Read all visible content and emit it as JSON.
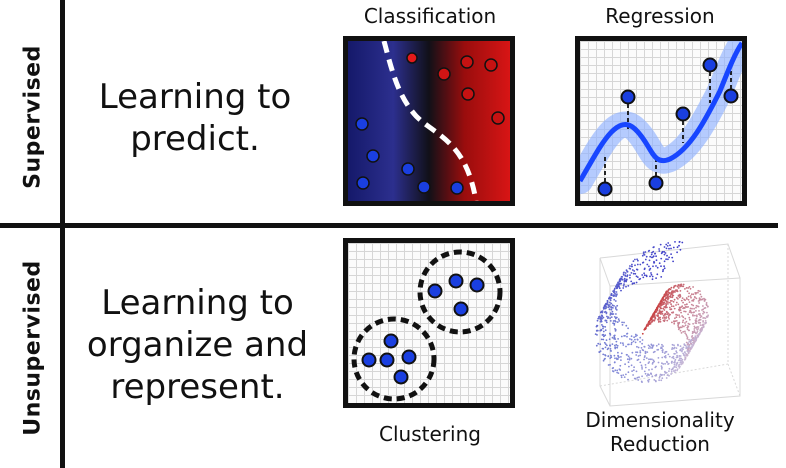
{
  "rows": {
    "supervised": {
      "label": "Supervised",
      "description_line1": "Learning to",
      "description_line2": "predict."
    },
    "unsupervised": {
      "label": "Unsupervised",
      "description_line1": "Learning to",
      "description_line2": "organize and",
      "description_line3": "represent."
    }
  },
  "panels": {
    "classification": {
      "title": "Classification"
    },
    "regression": {
      "title": "Regression"
    },
    "clustering": {
      "title": "Clustering"
    },
    "dimensionality_reduction": {
      "title_line1": "Dimensionality",
      "title_line2": "Reduction"
    }
  },
  "colors": {
    "blue_point": "#1a3fe0",
    "red_point": "#d41a1a",
    "curve": "#1846ff",
    "band": "#8fb0ff"
  }
}
